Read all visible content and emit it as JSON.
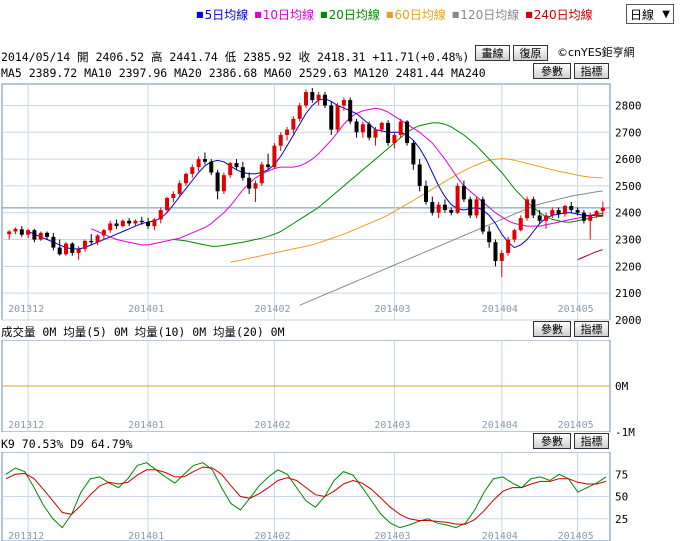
{
  "legend": [
    {
      "label": "5日均線",
      "color": "#0000dd"
    },
    {
      "label": "10日均線",
      "color": "#dd00dd"
    },
    {
      "label": "20日均線",
      "color": "#008800"
    },
    {
      "label": "60日均線",
      "color": "#e8a020"
    },
    {
      "label": "120日均線",
      "color": "#888888"
    },
    {
      "label": "240日均線",
      "color": "#cc0000"
    }
  ],
  "period": {
    "value": "日線",
    "icon": "chevron-down-icon"
  },
  "header": {
    "line1": "2014/05/14 開 2406.52 高 2441.74 低 2385.92 收 2418.31 +11.71(+0.48%)",
    "line2": "MA5 2389.72  MA10 2397.96  MA20 2386.68  MA60 2529.63  MA120 2481.44  MA240"
  },
  "buttons": {
    "draw": "畫線",
    "restore": "復原",
    "params": "參數",
    "indicator": "指標"
  },
  "brand": "©cnYES鉅亨網",
  "volume_header": "成交量 0M  均量(5) 0M  均量(10) 0M  均量(20) 0M",
  "kd_header": "K9 70.53%  D9 64.79%",
  "chart_data": [
    {
      "type": "candlestick",
      "x_ticks": [
        "201312",
        "201401",
        "201402",
        "201403",
        "201404",
        "201405"
      ],
      "y_ticks": [
        2000,
        2100,
        2200,
        2300,
        2400,
        2500,
        2600,
        2700,
        2800
      ],
      "ylim": [
        2000,
        2880
      ],
      "candles": [
        [
          2320,
          2335,
          2300,
          2330
        ],
        [
          2330,
          2345,
          2320,
          2340
        ],
        [
          2338,
          2350,
          2310,
          2318
        ],
        [
          2318,
          2340,
          2305,
          2335
        ],
        [
          2335,
          2340,
          2290,
          2300
        ],
        [
          2300,
          2330,
          2295,
          2325
        ],
        [
          2325,
          2330,
          2300,
          2310
        ],
        [
          2310,
          2325,
          2260,
          2270
        ],
        [
          2270,
          2300,
          2240,
          2245
        ],
        [
          2245,
          2290,
          2240,
          2285
        ],
        [
          2285,
          2290,
          2240,
          2250
        ],
        [
          2250,
          2275,
          2225,
          2265
        ],
        [
          2265,
          2300,
          2255,
          2295
        ],
        [
          2295,
          2320,
          2280,
          2290
        ],
        [
          2290,
          2320,
          2280,
          2315
        ],
        [
          2315,
          2340,
          2300,
          2335
        ],
        [
          2335,
          2370,
          2325,
          2360
        ],
        [
          2360,
          2375,
          2340,
          2350
        ],
        [
          2350,
          2375,
          2345,
          2370
        ],
        [
          2370,
          2380,
          2350,
          2360
        ],
        [
          2360,
          2375,
          2350,
          2370
        ],
        [
          2370,
          2385,
          2355,
          2365
        ],
        [
          2365,
          2380,
          2340,
          2350
        ],
        [
          2350,
          2380,
          2335,
          2375
        ],
        [
          2375,
          2420,
          2360,
          2410
        ],
        [
          2410,
          2460,
          2400,
          2455
        ],
        [
          2455,
          2480,
          2440,
          2470
        ],
        [
          2470,
          2520,
          2460,
          2510
        ],
        [
          2510,
          2550,
          2500,
          2545
        ],
        [
          2545,
          2580,
          2530,
          2570
        ],
        [
          2570,
          2610,
          2555,
          2600
        ],
        [
          2600,
          2625,
          2580,
          2590
        ],
        [
          2590,
          2600,
          2540,
          2550
        ],
        [
          2550,
          2560,
          2450,
          2480
        ],
        [
          2480,
          2550,
          2470,
          2540
        ],
        [
          2540,
          2590,
          2530,
          2585
        ],
        [
          2585,
          2600,
          2560,
          2570
        ],
        [
          2570,
          2590,
          2520,
          2530
        ],
        [
          2530,
          2550,
          2470,
          2490
        ],
        [
          2490,
          2520,
          2440,
          2510
        ],
        [
          2510,
          2590,
          2500,
          2580
        ],
        [
          2580,
          2620,
          2560,
          2570
        ],
        [
          2570,
          2660,
          2565,
          2650
        ],
        [
          2650,
          2700,
          2630,
          2690
        ],
        [
          2690,
          2720,
          2670,
          2710
        ],
        [
          2710,
          2760,
          2695,
          2750
        ],
        [
          2750,
          2810,
          2740,
          2800
        ],
        [
          2800,
          2860,
          2790,
          2850
        ],
        [
          2850,
          2865,
          2810,
          2820
        ],
        [
          2820,
          2850,
          2800,
          2840
        ],
        [
          2840,
          2850,
          2790,
          2800
        ],
        [
          2800,
          2815,
          2690,
          2710
        ],
        [
          2710,
          2810,
          2700,
          2800
        ],
        [
          2800,
          2830,
          2780,
          2820
        ],
        [
          2820,
          2830,
          2730,
          2740
        ],
        [
          2740,
          2750,
          2680,
          2700
        ],
        [
          2700,
          2740,
          2680,
          2730
        ],
        [
          2730,
          2740,
          2670,
          2680
        ],
        [
          2680,
          2720,
          2650,
          2710
        ],
        [
          2710,
          2740,
          2700,
          2735
        ],
        [
          2735,
          2745,
          2650,
          2660
        ],
        [
          2660,
          2700,
          2640,
          2690
        ],
        [
          2690,
          2750,
          2680,
          2740
        ],
        [
          2740,
          2745,
          2650,
          2660
        ],
        [
          2660,
          2670,
          2560,
          2580
        ],
        [
          2580,
          2600,
          2480,
          2500
        ],
        [
          2500,
          2520,
          2430,
          2440
        ],
        [
          2440,
          2460,
          2390,
          2400
        ],
        [
          2400,
          2440,
          2380,
          2430
        ],
        [
          2430,
          2450,
          2400,
          2410
        ],
        [
          2410,
          2420,
          2390,
          2400
        ],
        [
          2400,
          2510,
          2395,
          2500
        ],
        [
          2500,
          2520,
          2440,
          2450
        ],
        [
          2450,
          2460,
          2380,
          2390
        ],
        [
          2390,
          2460,
          2380,
          2450
        ],
        [
          2450,
          2460,
          2320,
          2330
        ],
        [
          2330,
          2350,
          2270,
          2290
        ],
        [
          2290,
          2300,
          2200,
          2220
        ],
        [
          2220,
          2260,
          2160,
          2250
        ],
        [
          2250,
          2310,
          2240,
          2300
        ],
        [
          2300,
          2340,
          2290,
          2335
        ],
        [
          2335,
          2390,
          2330,
          2380
        ],
        [
          2380,
          2460,
          2370,
          2450
        ],
        [
          2450,
          2460,
          2380,
          2390
        ],
        [
          2390,
          2410,
          2360,
          2370
        ],
        [
          2370,
          2400,
          2340,
          2390
        ],
        [
          2390,
          2420,
          2380,
          2410
        ],
        [
          2410,
          2420,
          2380,
          2395
        ],
        [
          2395,
          2430,
          2385,
          2425
        ],
        [
          2425,
          2440,
          2400,
          2410
        ],
        [
          2410,
          2420,
          2390,
          2400
        ],
        [
          2400,
          2410,
          2360,
          2370
        ],
        [
          2370,
          2400,
          2300,
          2390
        ],
        [
          2390,
          2410,
          2380,
          2406
        ],
        [
          2406,
          2442,
          2386,
          2418
        ]
      ],
      "ma5": [
        2330,
        2320,
        2310,
        2300,
        2290,
        2280,
        2270,
        2265,
        2265,
        2270,
        2280,
        2290,
        2300,
        2310,
        2320,
        2330,
        2340,
        2350,
        2360,
        2365,
        2370,
        2380,
        2400,
        2430,
        2460,
        2490,
        2520,
        2550,
        2575,
        2590,
        2595,
        2590,
        2575,
        2560,
        2550,
        2545,
        2545,
        2550,
        2560,
        2580,
        2610,
        2650,
        2690,
        2730,
        2770,
        2800,
        2820,
        2825,
        2815,
        2800,
        2790,
        2780,
        2770,
        2750,
        2730,
        2710,
        2705,
        2700,
        2700,
        2700,
        2690,
        2670,
        2640,
        2600,
        2550,
        2500,
        2460,
        2430,
        2415,
        2410,
        2415,
        2420,
        2410,
        2390,
        2360,
        2320,
        2290,
        2270,
        2280,
        2300,
        2330,
        2360,
        2380,
        2390,
        2395,
        2400,
        2400,
        2395,
        2390,
        2390,
        2390,
        2390
      ],
      "ma10": [
        2340,
        2330,
        2320,
        2310,
        2300,
        2295,
        2290,
        2285,
        2280,
        2280,
        2285,
        2290,
        2295,
        2300,
        2305,
        2315,
        2325,
        2335,
        2345,
        2360,
        2380,
        2400,
        2425,
        2455,
        2485,
        2510,
        2530,
        2545,
        2555,
        2565,
        2570,
        2570,
        2570,
        2575,
        2585,
        2600,
        2620,
        2645,
        2670,
        2700,
        2730,
        2755,
        2770,
        2780,
        2785,
        2790,
        2785,
        2775,
        2760,
        2745,
        2730,
        2715,
        2700,
        2680,
        2660,
        2630,
        2600,
        2565,
        2530,
        2500,
        2480,
        2460,
        2440,
        2420,
        2400,
        2385,
        2370,
        2360,
        2355,
        2350,
        2350,
        2350,
        2355,
        2360,
        2365,
        2370,
        2375,
        2380,
        2385,
        2390,
        2395,
        2398
      ],
      "ma20": [
        2300,
        2298,
        2295,
        2290,
        2285,
        2280,
        2275,
        2275,
        2278,
        2282,
        2286,
        2290,
        2295,
        2300,
        2305,
        2312,
        2320,
        2330,
        2345,
        2360,
        2375,
        2390,
        2405,
        2420,
        2440,
        2460,
        2480,
        2500,
        2520,
        2540,
        2560,
        2580,
        2600,
        2620,
        2640,
        2660,
        2680,
        2700,
        2715,
        2725,
        2730,
        2735,
        2735,
        2730,
        2720,
        2705,
        2690,
        2670,
        2650,
        2625,
        2600,
        2575,
        2550,
        2520,
        2490,
        2465,
        2440,
        2420,
        2400,
        2385,
        2375,
        2370,
        2365,
        2365,
        2370,
        2375,
        2380,
        2385,
        2387
      ],
      "ma60": [
        2215,
        2220,
        2225,
        2230,
        2235,
        2240,
        2245,
        2250,
        2255,
        2260,
        2265,
        2270,
        2275,
        2280,
        2288,
        2296,
        2304,
        2312,
        2320,
        2330,
        2340,
        2350,
        2360,
        2370,
        2380,
        2392,
        2405,
        2418,
        2432,
        2446,
        2460,
        2474,
        2488,
        2502,
        2516,
        2530,
        2544,
        2556,
        2568,
        2578,
        2588,
        2596,
        2600,
        2602,
        2600,
        2596,
        2590,
        2584,
        2578,
        2572,
        2566,
        2560,
        2555,
        2550,
        2545,
        2540,
        2536,
        2533,
        2531,
        2530
      ],
      "ma120": [
        2055,
        2065,
        2075,
        2085,
        2095,
        2105,
        2115,
        2125,
        2135,
        2145,
        2155,
        2165,
        2175,
        2185,
        2195,
        2205,
        2215,
        2225,
        2235,
        2245,
        2255,
        2265,
        2275,
        2285,
        2295,
        2305,
        2315,
        2325,
        2335,
        2345,
        2355,
        2365,
        2375,
        2385,
        2395,
        2405,
        2415,
        2425,
        2432,
        2438,
        2444,
        2450,
        2456,
        2462,
        2466,
        2470,
        2474,
        2478,
        2481
      ],
      "ma240": [
        2225,
        2235,
        2245,
        2255,
        2262
      ],
      "volume": {
        "y_ticks": [
          "0M",
          "-1M"
        ],
        "level": 0
      }
    },
    {
      "type": "line",
      "y_ticks": [
        25,
        50,
        75
      ],
      "ylim": [
        0,
        100
      ],
      "series": [
        {
          "name": "K9",
          "color": "#008800",
          "values": [
            75,
            82,
            78,
            60,
            40,
            25,
            15,
            30,
            55,
            70,
            72,
            65,
            60,
            70,
            85,
            88,
            80,
            72,
            65,
            75,
            85,
            88,
            80,
            60,
            42,
            35,
            48,
            62,
            72,
            80,
            75,
            60,
            45,
            38,
            50,
            68,
            78,
            74,
            60,
            45,
            30,
            20,
            15,
            18,
            22,
            25,
            20,
            18,
            15,
            20,
            35,
            55,
            70,
            72,
            65,
            60,
            70,
            72,
            68,
            75,
            70,
            55,
            60,
            65,
            72
          ]
        },
        {
          "name": "D9",
          "color": "#cc0000",
          "values": [
            70,
            75,
            76,
            70,
            58,
            45,
            32,
            30,
            40,
            52,
            62,
            66,
            64,
            66,
            74,
            80,
            80,
            77,
            72,
            72,
            78,
            83,
            82,
            75,
            62,
            50,
            48,
            53,
            60,
            68,
            71,
            68,
            60,
            52,
            50,
            56,
            64,
            68,
            65,
            58,
            48,
            38,
            30,
            25,
            23,
            23,
            22,
            21,
            19,
            19,
            24,
            34,
            46,
            56,
            60,
            60,
            64,
            67,
            67,
            70,
            70,
            66,
            64,
            64,
            67
          ]
        }
      ]
    }
  ]
}
